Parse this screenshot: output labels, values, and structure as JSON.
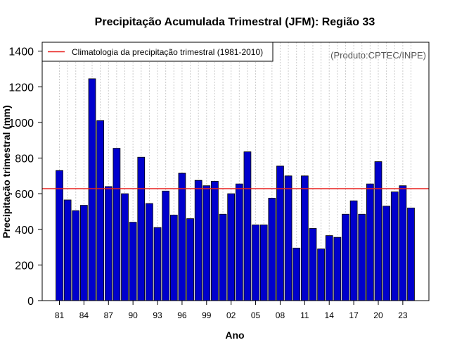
{
  "chart_data": {
    "type": "bar",
    "title": "Precipitação Acumulada Trimestral (JFM): Região 33",
    "xlabel": "Ano",
    "ylabel": "Precipitação trimestral (mm)",
    "ylim": [
      0,
      1450
    ],
    "yticks": [
      0,
      200,
      400,
      600,
      800,
      1000,
      1200,
      1400
    ],
    "grid": "vertical dotted",
    "legend_position": "top-left",
    "credit": "(Produto:CPTEC/INPE)",
    "categories": [
      "1981",
      "1982",
      "1983",
      "1984",
      "1985",
      "1986",
      "1987",
      "1988",
      "1989",
      "1990",
      "1991",
      "1992",
      "1993",
      "1994",
      "1995",
      "1996",
      "1997",
      "1998",
      "1999",
      "2000",
      "2001",
      "2002",
      "2003",
      "2004",
      "2005",
      "2006",
      "2007",
      "2008",
      "2009",
      "2010",
      "2011",
      "2012",
      "2013",
      "2014",
      "2015",
      "2016",
      "2017",
      "2018",
      "2019",
      "2020",
      "2021",
      "2022",
      "2023",
      "2024"
    ],
    "xtick_labels": [
      {
        "index": 0,
        "label": "81"
      },
      {
        "index": 3,
        "label": "84"
      },
      {
        "index": 6,
        "label": "87"
      },
      {
        "index": 9,
        "label": "90"
      },
      {
        "index": 12,
        "label": "93"
      },
      {
        "index": 15,
        "label": "96"
      },
      {
        "index": 18,
        "label": "99"
      },
      {
        "index": 21,
        "label": "02"
      },
      {
        "index": 24,
        "label": "05"
      },
      {
        "index": 27,
        "label": "08"
      },
      {
        "index": 30,
        "label": "11"
      },
      {
        "index": 33,
        "label": "14"
      },
      {
        "index": 36,
        "label": "17"
      },
      {
        "index": 39,
        "label": "20"
      },
      {
        "index": 42,
        "label": "23"
      }
    ],
    "series": [
      {
        "name": "Precipitação trimestral",
        "color": "#0000cc",
        "values": [
          730,
          565,
          505,
          535,
          1245,
          1010,
          640,
          855,
          600,
          440,
          805,
          545,
          410,
          615,
          480,
          715,
          460,
          675,
          645,
          670,
          485,
          600,
          655,
          835,
          425,
          425,
          575,
          755,
          700,
          295,
          700,
          405,
          290,
          365,
          355,
          485,
          560,
          485,
          655,
          780,
          530,
          610,
          645,
          520
        ]
      }
    ],
    "reference_line": {
      "label": "Climatologia da precipitação trimestral (1981-2010)",
      "value": 628,
      "color": "#e8211f"
    }
  }
}
